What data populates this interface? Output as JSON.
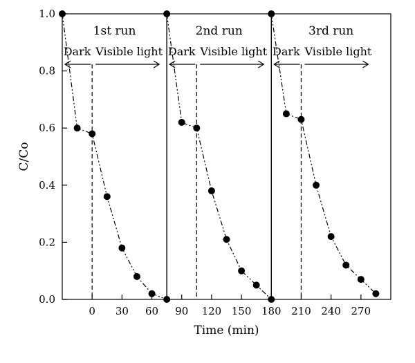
{
  "chart_data": {
    "type": "scatter",
    "xlabel": "Time (min)",
    "ylabel": "C/Co",
    "xlim": [
      -30,
      300
    ],
    "ylim": [
      0.0,
      1.0
    ],
    "x_ticks": [
      {
        "value": 0,
        "label": "0"
      },
      {
        "value": 30,
        "label": "30"
      },
      {
        "value": 60,
        "label": "60"
      },
      {
        "value": 90,
        "label": "90"
      },
      {
        "value": 120,
        "label": "120"
      },
      {
        "value": 150,
        "label": "150"
      },
      {
        "value": 180,
        "label": "180"
      },
      {
        "value": 210,
        "label": "210"
      },
      {
        "value": 240,
        "label": "240"
      },
      {
        "value": 270,
        "label": "270"
      }
    ],
    "y_ticks": [
      {
        "value": 0.0,
        "label": "0.0"
      },
      {
        "value": 0.2,
        "label": "0.2"
      },
      {
        "value": 0.4,
        "label": "0.4"
      },
      {
        "value": 0.6,
        "label": "0.6"
      },
      {
        "value": 0.8,
        "label": "0.8"
      },
      {
        "value": 1.0,
        "label": "1.0"
      }
    ],
    "runs": [
      {
        "label": "1st run",
        "x_start": -30,
        "x_light_on": 0,
        "x_end": 75,
        "dark_label": "Dark",
        "light_label": "Visible light",
        "x": [
          -30,
          -15,
          0,
          15,
          30,
          45,
          60,
          75
        ],
        "y": [
          1.0,
          0.6,
          0.58,
          0.36,
          0.18,
          0.08,
          0.02,
          0.0
        ]
      },
      {
        "label": "2nd run",
        "x_start": 75,
        "x_light_on": 105,
        "x_end": 180,
        "dark_label": "Dark",
        "light_label": "Visible light",
        "x": [
          75,
          90,
          105,
          120,
          135,
          150,
          165,
          180
        ],
        "y": [
          1.0,
          0.62,
          0.6,
          0.38,
          0.21,
          0.1,
          0.05,
          0.0
        ]
      },
      {
        "label": "3rd run",
        "x_start": 180,
        "x_light_on": 210,
        "x_end": 300,
        "dark_label": "Dark",
        "light_label": "Visible light",
        "x": [
          180,
          195,
          210,
          225,
          240,
          255,
          270,
          285
        ],
        "y": [
          1.0,
          0.65,
          0.63,
          0.4,
          0.22,
          0.12,
          0.07,
          0.02
        ]
      }
    ]
  }
}
